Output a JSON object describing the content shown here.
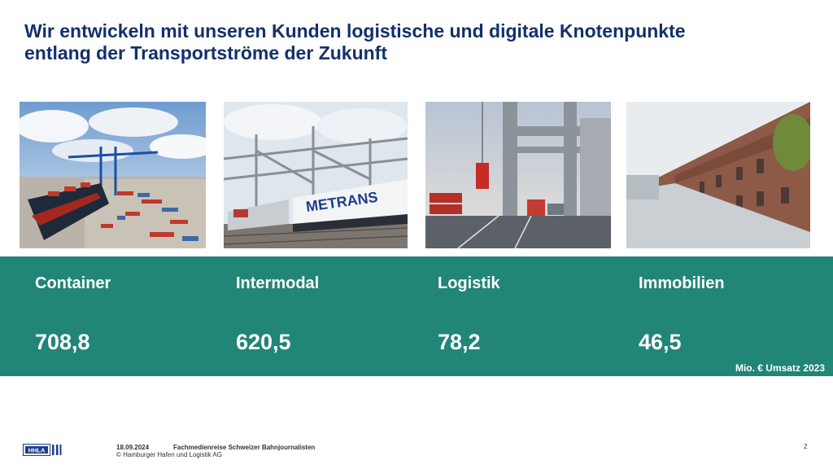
{
  "slide": {
    "title_line1": "Wir entwickeln mit unseren Kunden logistische und digitale Knotenpunkte",
    "title_line2": "entlang der Transportströme der Zukunft"
  },
  "segments": [
    {
      "name": "Container",
      "value": "708,8",
      "image": "container-terminal-photo"
    },
    {
      "name": "Intermodal",
      "value": "620,5",
      "image": "metrans-train-photo"
    },
    {
      "name": "Logistik",
      "value": "78,2",
      "image": "logistics-crane-photo"
    },
    {
      "name": "Immobilien",
      "value": "46,5",
      "image": "speicherstadt-photo"
    }
  ],
  "unit_note": "Mio. € Umsatz 2023",
  "photo_text": {
    "train_brand": "METRANS"
  },
  "footer": {
    "date": "18.09.2024",
    "event": "Fachmedienreise Schweizer Bahnjournalisten",
    "copyright": "© Hamburger Hafen und Logistik AG",
    "page": "2",
    "logo": "HHLA"
  },
  "colors": {
    "title": "#13306b",
    "band": "#218578",
    "text_on_band": "#ffffff"
  }
}
